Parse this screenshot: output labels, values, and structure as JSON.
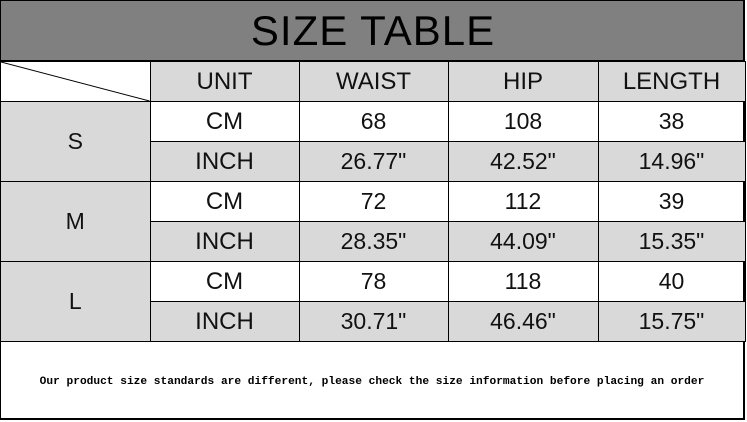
{
  "title": "SIZE TABLE",
  "headers": [
    "UNIT",
    "WAIST",
    "HIP",
    "LENGTH"
  ],
  "sizes": [
    {
      "size": "S",
      "rows": [
        {
          "unit": "CM",
          "waist": "68",
          "hip": "108",
          "length": "38"
        },
        {
          "unit": "INCH",
          "waist": "26.77\"",
          "hip": "42.52\"",
          "length": "14.96\""
        }
      ]
    },
    {
      "size": "M",
      "rows": [
        {
          "unit": "CM",
          "waist": "72",
          "hip": "112",
          "length": "39"
        },
        {
          "unit": "INCH",
          "waist": "28.35\"",
          "hip": "44.09\"",
          "length": "15.35\""
        }
      ]
    },
    {
      "size": "L",
      "rows": [
        {
          "unit": "CM",
          "waist": "78",
          "hip": "118",
          "length": "40"
        },
        {
          "unit": "INCH",
          "waist": "30.71\"",
          "hip": "46.46\"",
          "length": "15.75\""
        }
      ]
    }
  ],
  "note": "Our product size standards are different, please check the size information before placing an order",
  "colors": {
    "title_bg": "#808080",
    "cell_gray": "#d9d9d9",
    "cell_white": "#ffffff"
  }
}
